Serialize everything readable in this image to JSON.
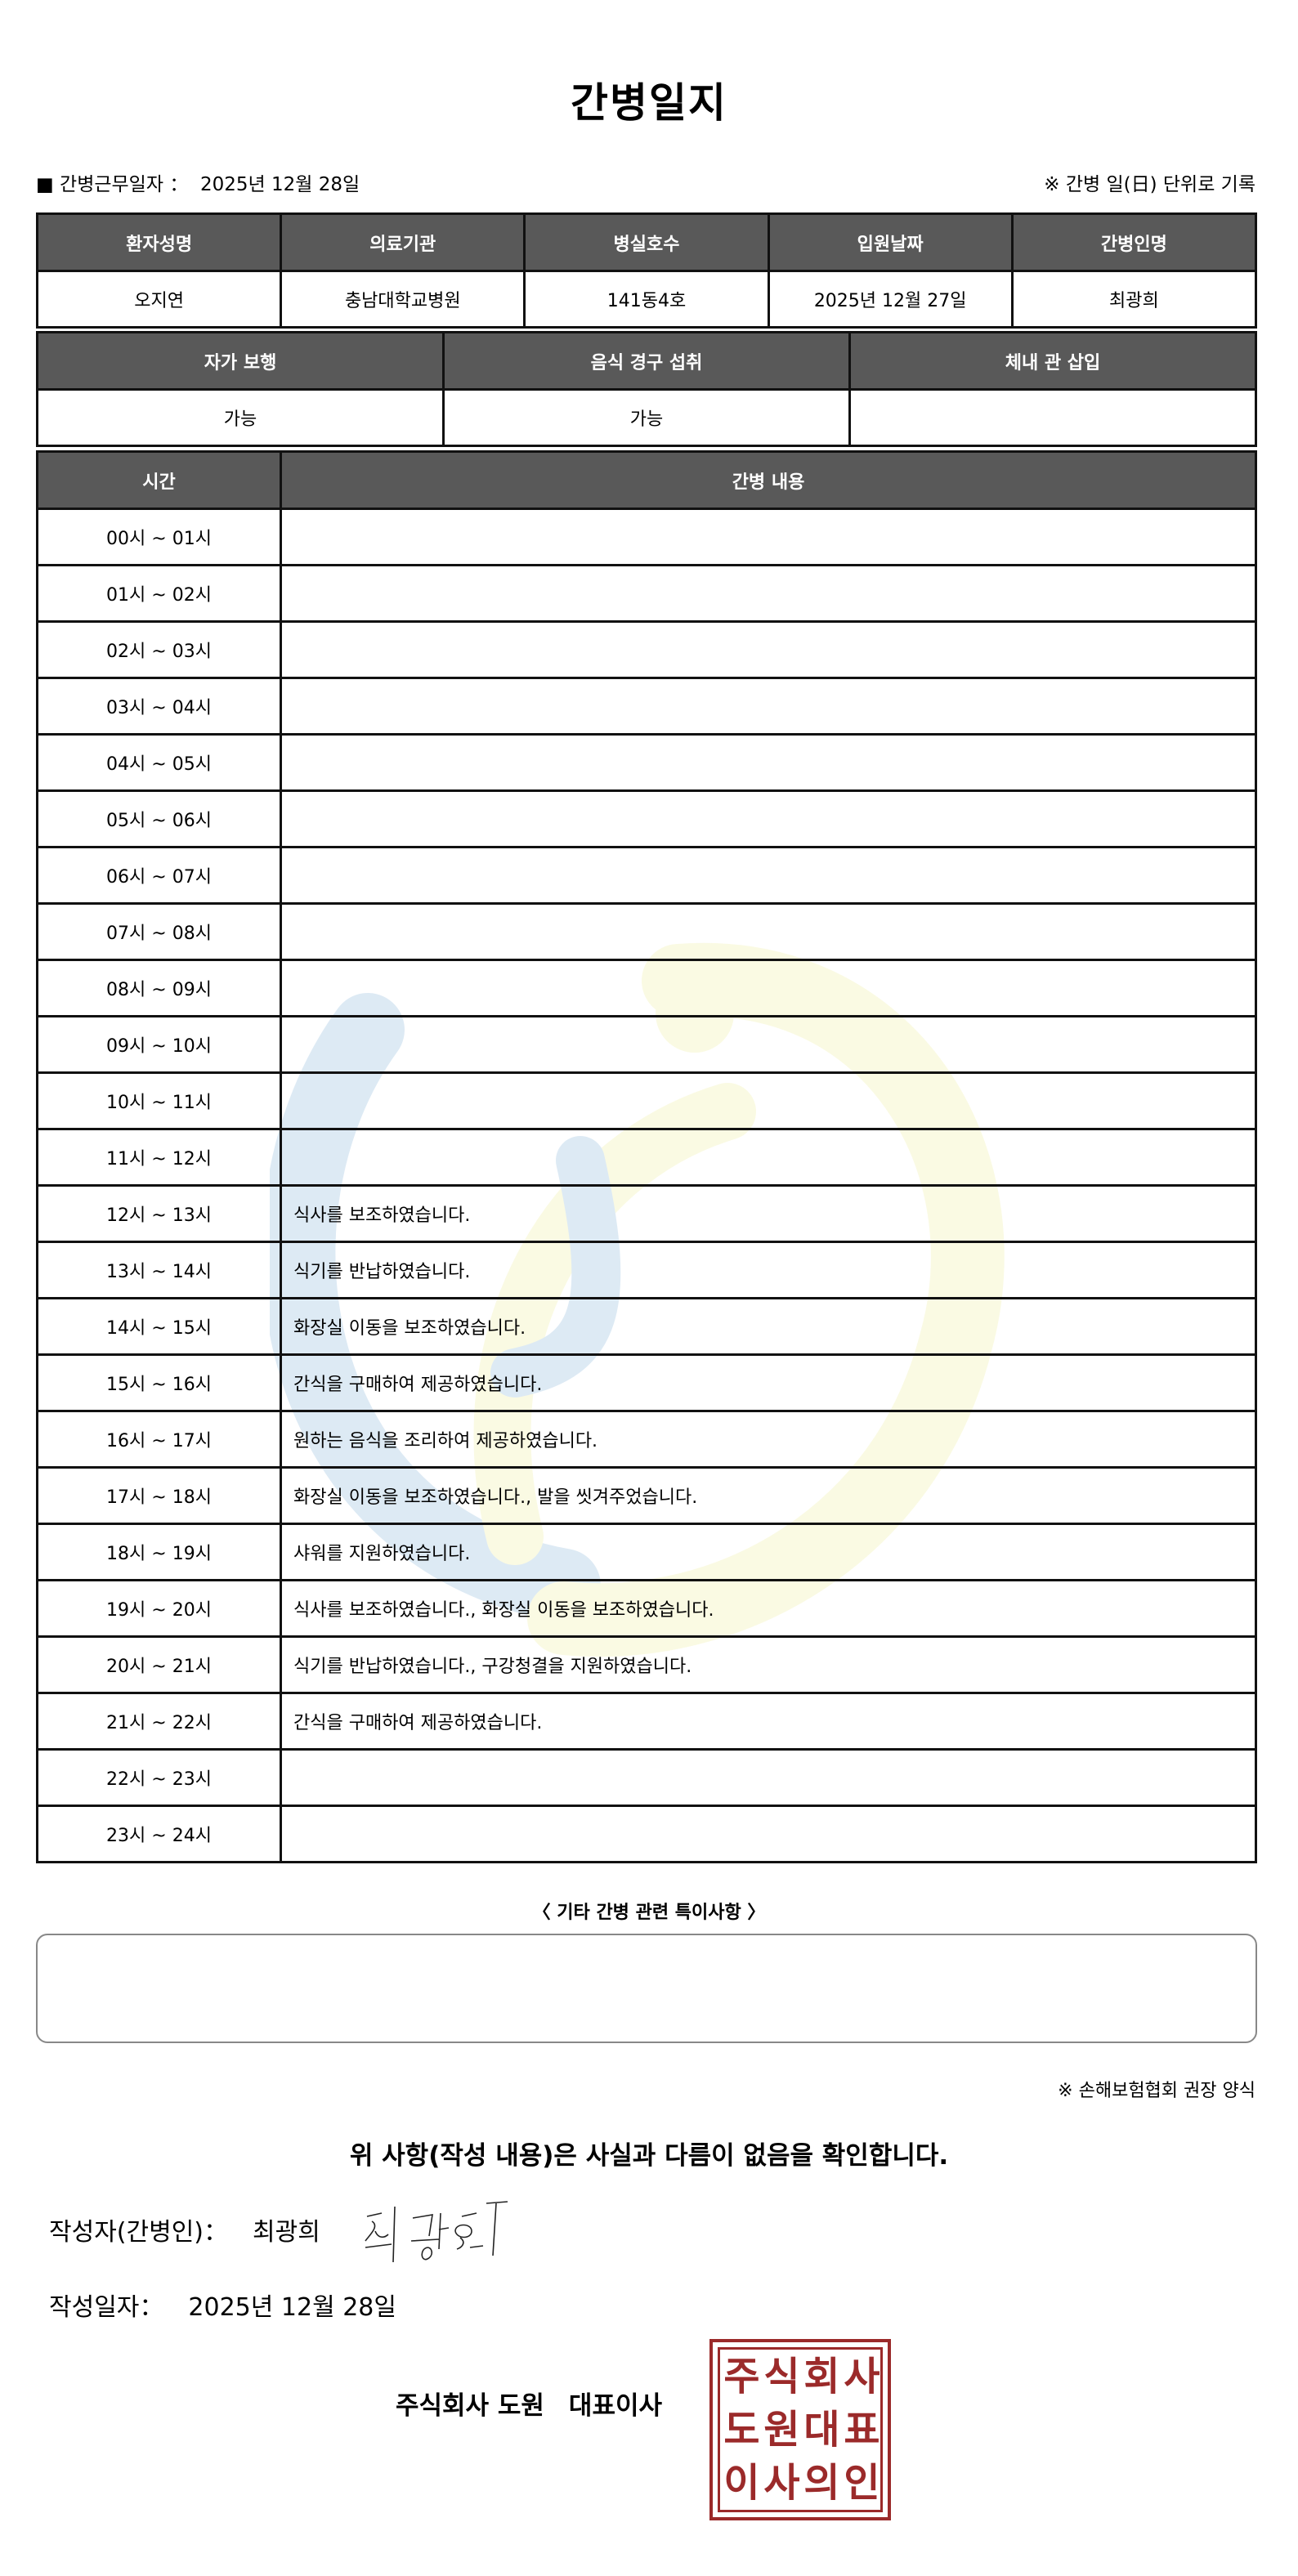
{
  "title": "간병일지",
  "work_date_label": "■ 간병근무일자 ：",
  "work_date": "2025년 12월 28일",
  "unit_note": "※ 간병 일(日) 단위로 기록",
  "info_table": {
    "headers": [
      "환자성명",
      "의료기관",
      "병실호수",
      "입원날짜",
      "간병인명"
    ],
    "values": [
      "오지연",
      "충남대학교병원",
      "141동4호",
      "2025년 12월 27일",
      "최광희"
    ]
  },
  "status_table": {
    "headers": [
      "자가 보행",
      "음식 경구 섭취",
      "체내 관 삽입"
    ],
    "values": [
      "가능",
      "가능",
      ""
    ]
  },
  "log_table": {
    "headers": [
      "시간",
      "간병 내용"
    ],
    "rows": [
      {
        "time": "00시 ~ 01시",
        "content": ""
      },
      {
        "time": "01시 ~ 02시",
        "content": ""
      },
      {
        "time": "02시 ~ 03시",
        "content": ""
      },
      {
        "time": "03시 ~ 04시",
        "content": ""
      },
      {
        "time": "04시 ~ 05시",
        "content": ""
      },
      {
        "time": "05시 ~ 06시",
        "content": ""
      },
      {
        "time": "06시 ~ 07시",
        "content": ""
      },
      {
        "time": "07시 ~ 08시",
        "content": ""
      },
      {
        "time": "08시 ~ 09시",
        "content": ""
      },
      {
        "time": "09시 ~ 10시",
        "content": ""
      },
      {
        "time": "10시 ~ 11시",
        "content": ""
      },
      {
        "time": "11시 ~ 12시",
        "content": ""
      },
      {
        "time": "12시 ~ 13시",
        "content": "식사를 보조하였습니다."
      },
      {
        "time": "13시 ~ 14시",
        "content": "식기를 반납하였습니다."
      },
      {
        "time": "14시 ~ 15시",
        "content": "화장실 이동을 보조하였습니다."
      },
      {
        "time": "15시 ~ 16시",
        "content": "간식을 구매하여 제공하였습니다."
      },
      {
        "time": "16시 ~ 17시",
        "content": "원하는 음식을 조리하여 제공하였습니다."
      },
      {
        "time": "17시 ~ 18시",
        "content": "화장실 이동을 보조하였습니다., 발을 씻겨주었습니다."
      },
      {
        "time": "18시 ~ 19시",
        "content": "샤워를 지원하였습니다."
      },
      {
        "time": "19시 ~ 20시",
        "content": "식사를 보조하였습니다., 화장실 이동을 보조하였습니다."
      },
      {
        "time": "20시 ~ 21시",
        "content": "식기를 반납하였습니다., 구강청결을 지원하였습니다."
      },
      {
        "time": "21시 ~ 22시",
        "content": "간식을 구매하여 제공하였습니다."
      },
      {
        "time": "22시 ~ 23시",
        "content": ""
      },
      {
        "time": "23시 ~ 24시",
        "content": ""
      }
    ]
  },
  "notes": {
    "title": "〈 기타 간병 관련 특이사항 〉",
    "value": ""
  },
  "association_note": "※ 손해보험협회 권장 양식",
  "confirmation": "위 사항(작성 내용)은 사실과 다름이 없음을 확인합니다.",
  "writer": {
    "label": "작성자(간병인)：",
    "name": "최광희",
    "signature": "최광희"
  },
  "written_date": {
    "label": "작성일자：",
    "value": "2025년 12월 28일"
  },
  "company": {
    "name": "주식회사 도원",
    "title": "대표이사"
  },
  "seal": {
    "text": "주식회사도원대표이사의인",
    "color": "#9b2a2a"
  },
  "colors": {
    "header_bg": "#595959",
    "header_text": "#ffffff"
  }
}
